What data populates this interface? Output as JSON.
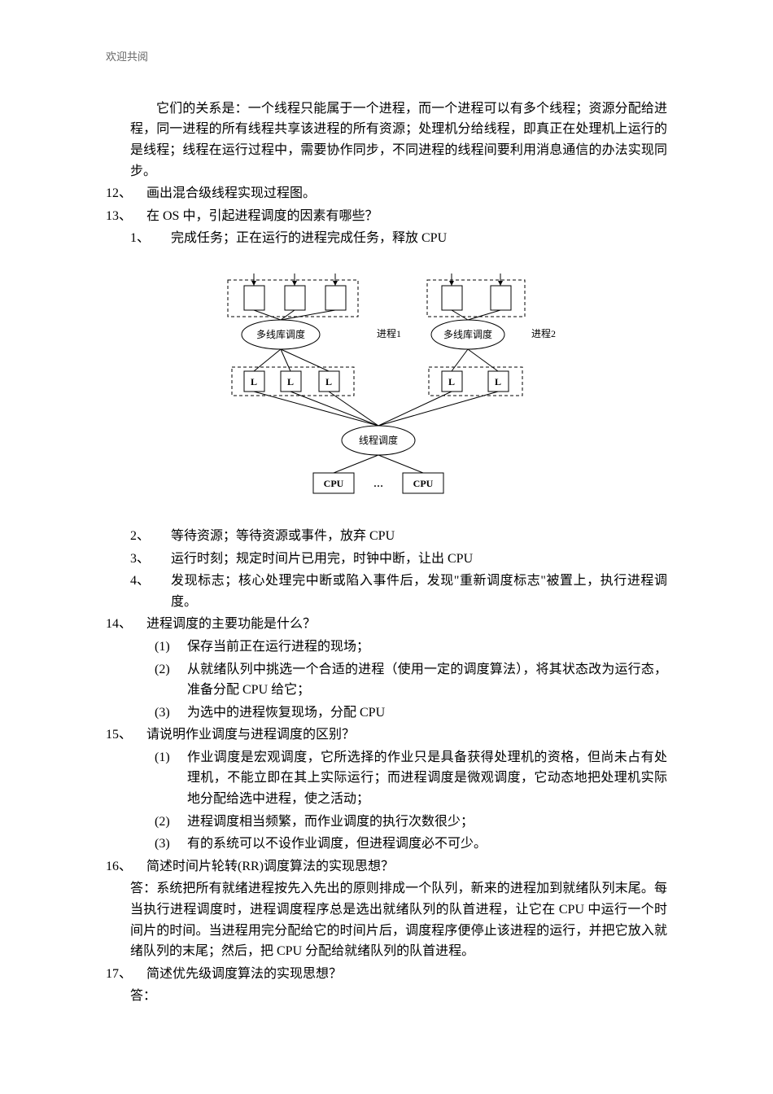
{
  "header": "欢迎共阅",
  "intro_para": "它们的关系是：一个线程只能属于一个进程，而一个进程可以有多个线程；资源分配给进程，同一进程的所有线程共享该进程的所有资源；处理机分给线程，即真正在处理机上运行的是线程；线程在运行过程中，需要协作同步，不同进程的线程间要利用消息通信的办法实现同步。",
  "q12_num": "12、",
  "q12_txt": "画出混合级线程实现过程图。",
  "q13_num": "13、",
  "q13_txt": "在 OS 中，引起进程调度的因素有哪些？",
  "q13_1_num": "1、",
  "q13_1_txt": "完成任务；正在运行的进程完成任务，释放 CPU",
  "q13_2_num": "2、",
  "q13_2_txt": "等待资源；等待资源或事件，放弃 CPU",
  "q13_3_num": "3、",
  "q13_3_txt": "运行时刻；规定时间片已用完，时钟中断，让出 CPU",
  "q13_4_num": "4、",
  "q13_4_txt": "发现标志；核心处理完中断或陷入事件后，发现\"重新调度标志\"被置上，执行进程调度。",
  "q14_num": "14、",
  "q14_txt": "进程调度的主要功能是什么？",
  "q14_1_num": "(1)",
  "q14_1_txt": "保存当前正在运行进程的现场；",
  "q14_2_num": "(2)",
  "q14_2_txt": "从就绪队列中挑选一个合适的进程（使用一定的调度算法），将其状态改为运行态，准备分配 CPU 给它；",
  "q14_3_num": "(3)",
  "q14_3_txt": "为选中的进程恢复现场，分配 CPU",
  "q15_num": "15、",
  "q15_txt": "请说明作业调度与进程调度的区别？",
  "q15_1_num": "(1)",
  "q15_1_txt": "作业调度是宏观调度，它所选择的作业只是具备获得处理机的资格，但尚未占有处理机，不能立即在其上实际运行；而进程调度是微观调度，它动态地把处理机实际地分配给选中进程，使之活动；",
  "q15_2_num": "(2)",
  "q15_2_txt": "进程调度相当频繁，而作业调度的执行次数很少；",
  "q15_3_num": "(3)",
  "q15_3_txt": "有的系统可以不设作业调度，但进程调度必不可少。",
  "q16_num": "16、",
  "q16_txt": "简述时间片轮转(RR)调度算法的实现思想？",
  "q16_ans": "答：系统把所有就绪进程按先入先出的原则排成一个队列，新来的进程加到就绪队列末尾。每当执行进程调度时，进程调度程序总是选出就绪队列的队首进程，让它在 CPU 中运行一个时间片的时间。当进程用完分配给它的时间片后，调度程序便停止该进程的运行，并把它放入就绪队列的末尾；然后，把 CPU 分配给就绪队列的队首进程。",
  "q17_num": "17、",
  "q17_txt": "简述优先级调度算法的实现思想？",
  "q17_ans": "答：",
  "diagram": {
    "labels": {
      "mlib": "多线库调度",
      "proc1": "进程1",
      "proc2": "进程2",
      "L": "L",
      "sched": "线程调度",
      "cpu": "CPU",
      "dots": "…"
    },
    "colors": {
      "stroke": "#000000",
      "fill": "#ffffff",
      "text": "#000000"
    },
    "font_family": "SimSun, serif",
    "label_font_size": 12,
    "bold_font_size": 12
  }
}
